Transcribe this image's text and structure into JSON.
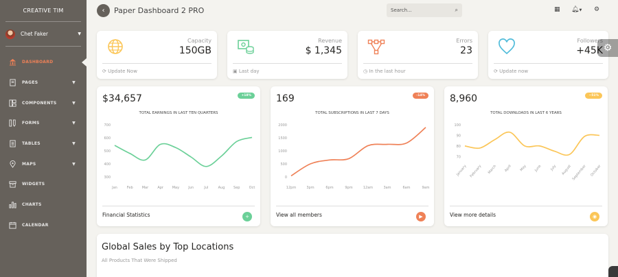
{
  "sidebar": {
    "brand": "CREATIVE TIM",
    "user": "Chet Faker",
    "items": [
      {
        "label": "DASHBOARD",
        "icon": "bank-icon",
        "active": true,
        "caret": false
      },
      {
        "label": "PAGES",
        "icon": "book-icon",
        "caret": true
      },
      {
        "label": "COMPONENTS",
        "icon": "layout-icon",
        "caret": true
      },
      {
        "label": "FORMS",
        "icon": "ruler-pencil-icon",
        "caret": true
      },
      {
        "label": "TABLES",
        "icon": "paper-icon",
        "caret": true
      },
      {
        "label": "MAPS",
        "icon": "pin-icon",
        "caret": true
      },
      {
        "label": "WIDGETS",
        "icon": "box-icon",
        "caret": false
      },
      {
        "label": "CHARTS",
        "icon": "chart-bar-icon",
        "caret": false
      },
      {
        "label": "CALENDAR",
        "icon": "calendar-icon",
        "caret": false
      }
    ]
  },
  "topbar": {
    "title": "Paper Dashboard 2 PRO",
    "search_placeholder": "Search..."
  },
  "stats": [
    {
      "label": "Capacity",
      "value": "150GB",
      "foot": "Update Now",
      "foot_icon": "refresh-icon",
      "icon": "globe-icon",
      "color": "#fbc658"
    },
    {
      "label": "Revenue",
      "value": "$ 1,345",
      "foot": "Last day",
      "foot_icon": "calendar-icon",
      "icon": "money-coins-icon",
      "color": "#6bd098"
    },
    {
      "label": "Errors",
      "value": "23",
      "foot": "In the last hour",
      "foot_icon": "clock-icon",
      "icon": "vector-icon",
      "color": "#ef8157"
    },
    {
      "label": "Followers",
      "value": "+45K",
      "foot": "Update now",
      "foot_icon": "refresh-icon",
      "icon": "heart-icon",
      "color": "#51bcda"
    }
  ],
  "charts": [
    {
      "big": "$34,657",
      "badge": "+18%",
      "badge_color": "#6bd098",
      "title": "TOTAL EARNINGS IN LAST TEN QUARTERS",
      "footer": "Financial Statistics",
      "btn_color": "#6bd098",
      "btn_glyph": "+"
    },
    {
      "big": "169",
      "badge": "-14%",
      "badge_color": "#ef8157",
      "title": "TOTAL SUBSCRIPTIONS IN LAST 7 DAYS",
      "footer": "View all members",
      "btn_color": "#ef8157",
      "btn_glyph": "▶"
    },
    {
      "big": "8,960",
      "badge": "~51%",
      "badge_color": "#fbc658",
      "title": "TOTAL DOWNLOADS IN LAST 6 YEARS",
      "footer": "View more details",
      "btn_color": "#fbc658",
      "btn_glyph": "◉"
    }
  ],
  "chart_data": [
    {
      "type": "line",
      "color": "#6bd098",
      "categories": [
        "Jan",
        "Feb",
        "Mar",
        "Apr",
        "May",
        "Jun",
        "Jul",
        "Aug",
        "Sep",
        "Oct"
      ],
      "yticks": [
        "700",
        "600",
        "500",
        "400",
        "300"
      ],
      "ylim": [
        300,
        700
      ],
      "values": [
        542,
        480,
        430,
        550,
        525,
        453,
        380,
        460,
        572,
        603
      ]
    },
    {
      "type": "line",
      "color": "#ef8157",
      "categories": [
        "12pm",
        "3pm",
        "6pm",
        "9pm",
        "12am",
        "3am",
        "6am",
        "9am"
      ],
      "yticks": [
        "2000",
        "1500",
        "1000",
        "500",
        "0"
      ],
      "ylim": [
        0,
        2000
      ],
      "values": [
        40,
        500,
        650,
        700,
        1200,
        1250,
        1300,
        1900
      ]
    },
    {
      "type": "line",
      "color": "#fbc658",
      "categories": [
        "January",
        "February",
        "March",
        "April",
        "May",
        "June",
        "July",
        "August",
        "September",
        "October"
      ],
      "yticks": [
        "100",
        "90",
        "80",
        "70"
      ],
      "ylim": [
        65,
        100
      ],
      "values": [
        80,
        78,
        86,
        93,
        80,
        80,
        75,
        72,
        89,
        90
      ]
    }
  ],
  "global": {
    "title": "Global Sales by Top Locations",
    "subtitle": "All Products That Were Shipped"
  }
}
